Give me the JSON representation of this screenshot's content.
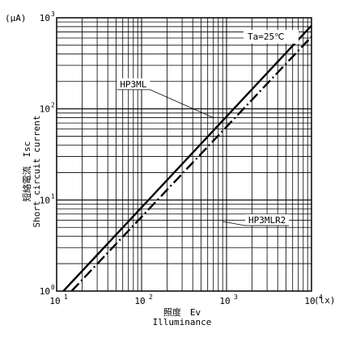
{
  "chart_data": {
    "type": "line",
    "x_scale": "log",
    "y_scale": "log",
    "xlim": [
      10,
      10000
    ],
    "ylim": [
      1,
      1000
    ],
    "grid": true,
    "x_unit": "(lx)",
    "y_unit": "(μA)",
    "xlabel_jp": "照度　Ev",
    "xlabel_en": "Illuminance",
    "ylabel_jp": "短絡電流　Isc",
    "ylabel_en": "Short circuit current",
    "condition": "Ta=25℃",
    "x_ticks": [
      {
        "value": 10,
        "base": "10",
        "exp": "1"
      },
      {
        "value": 100,
        "base": "10",
        "exp": "2"
      },
      {
        "value": 1000,
        "base": "10",
        "exp": "3"
      },
      {
        "value": 10000,
        "base": "10",
        "exp": "4"
      }
    ],
    "y_ticks": [
      {
        "value": 1,
        "base": "10",
        "exp": "0"
      },
      {
        "value": 10,
        "base": "10",
        "exp": "1"
      },
      {
        "value": 100,
        "base": "10",
        "exp": "2"
      },
      {
        "value": 1000,
        "base": "10",
        "exp": "3"
      }
    ],
    "series": [
      {
        "name": "HP3ML",
        "style": "solid",
        "x": [
          12,
          10000
        ],
        "y": [
          1.0,
          820
        ],
        "label_at": [
          80,
          180
        ],
        "anchor": [
          700,
          80
        ]
      },
      {
        "name": "HP3MLR2",
        "style": "dashdot",
        "x": [
          15,
          10000
        ],
        "y": [
          1.0,
          620
        ],
        "label_at": [
          3000,
          5.8
        ],
        "anchor": [
          900,
          5.8
        ]
      }
    ]
  }
}
